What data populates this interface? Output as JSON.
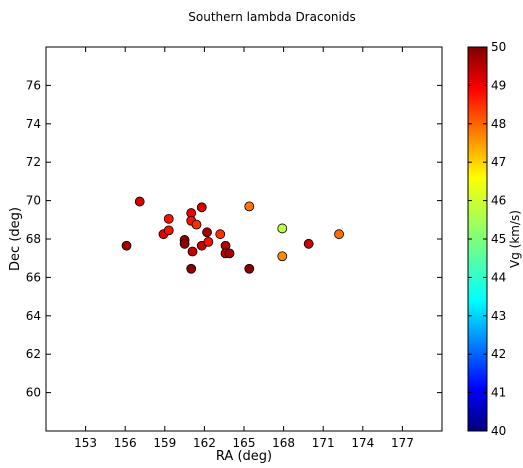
{
  "chart_data": {
    "type": "scatter",
    "title": "Southern lambda Draconids",
    "xlabel": "RA (deg)",
    "ylabel": "Dec (deg)",
    "xlim": [
      150.0,
      180.0
    ],
    "ylim": [
      58.0,
      78.0
    ],
    "xticks": [
      153,
      156,
      159,
      162,
      165,
      168,
      171,
      174,
      177
    ],
    "yticks": [
      60,
      62,
      64,
      66,
      68,
      70,
      72,
      74,
      76
    ],
    "grid": false,
    "colorbar": {
      "label": "Vg (km/s)",
      "range": [
        40,
        50
      ],
      "ticks": [
        40,
        41,
        42,
        43,
        44,
        45,
        46,
        47,
        48,
        49,
        50
      ],
      "colormap": "jet"
    },
    "points": [
      {
        "x": 156.1,
        "y": 67.65,
        "vg": 49.7
      },
      {
        "x": 157.1,
        "y": 69.95,
        "vg": 49.1
      },
      {
        "x": 158.9,
        "y": 68.25,
        "vg": 49.0
      },
      {
        "x": 159.3,
        "y": 69.05,
        "vg": 48.6
      },
      {
        "x": 159.3,
        "y": 68.45,
        "vg": 48.6
      },
      {
        "x": 160.5,
        "y": 67.95,
        "vg": 49.8
      },
      {
        "x": 160.5,
        "y": 67.75,
        "vg": 49.8
      },
      {
        "x": 161.0,
        "y": 69.35,
        "vg": 48.9
      },
      {
        "x": 161.0,
        "y": 68.95,
        "vg": 48.6
      },
      {
        "x": 161.4,
        "y": 68.75,
        "vg": 48.3
      },
      {
        "x": 161.1,
        "y": 67.35,
        "vg": 49.3
      },
      {
        "x": 161.0,
        "y": 66.45,
        "vg": 49.9
      },
      {
        "x": 161.8,
        "y": 69.65,
        "vg": 49.1
      },
      {
        "x": 161.8,
        "y": 67.65,
        "vg": 49.3
      },
      {
        "x": 162.2,
        "y": 68.35,
        "vg": 49.6
      },
      {
        "x": 162.3,
        "y": 67.85,
        "vg": 48.6
      },
      {
        "x": 163.2,
        "y": 68.25,
        "vg": 48.3
      },
      {
        "x": 163.6,
        "y": 67.65,
        "vg": 49.5
      },
      {
        "x": 163.6,
        "y": 67.25,
        "vg": 49.5
      },
      {
        "x": 163.9,
        "y": 67.25,
        "vg": 49.6
      },
      {
        "x": 165.4,
        "y": 69.7,
        "vg": 47.6
      },
      {
        "x": 165.4,
        "y": 66.45,
        "vg": 49.9
      },
      {
        "x": 167.9,
        "y": 68.55,
        "vg": 45.6
      },
      {
        "x": 167.9,
        "y": 67.1,
        "vg": 47.4
      },
      {
        "x": 169.9,
        "y": 67.75,
        "vg": 49.3
      },
      {
        "x": 172.2,
        "y": 68.25,
        "vg": 47.7
      }
    ]
  }
}
